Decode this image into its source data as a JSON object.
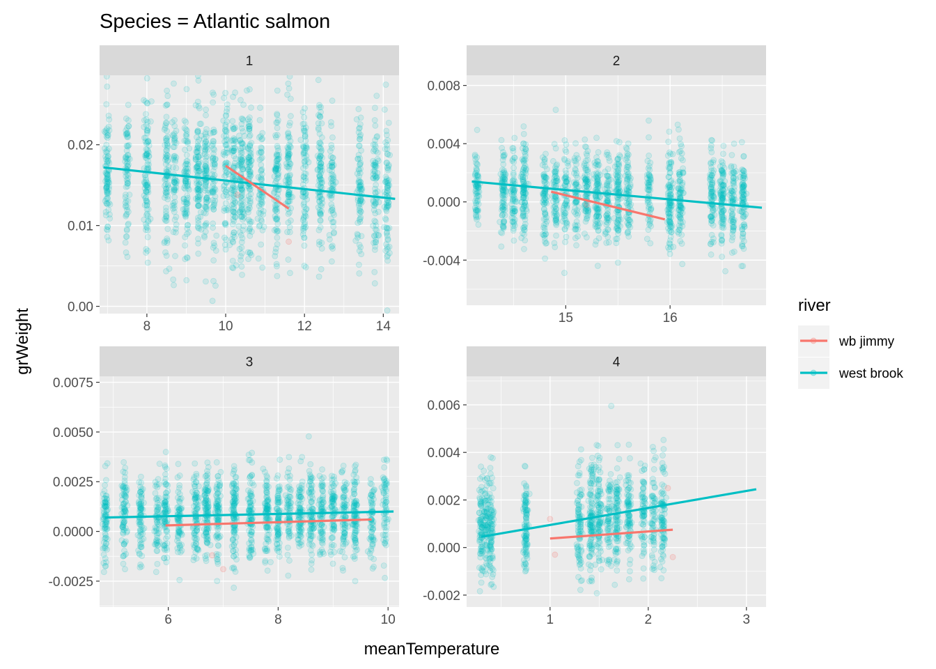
{
  "chart_data": {
    "type": "scatter",
    "title": "Species = Atlantic salmon",
    "xlabel": "meanTemperature",
    "ylabel": "grWeight",
    "legend": {
      "title": "river",
      "placement": "right",
      "entries": [
        {
          "name": "wb jimmy",
          "color": "#F8766D"
        },
        {
          "name": "west brook",
          "color": "#00BFC4"
        }
      ]
    },
    "facets": [
      {
        "label": "1",
        "xlim": [
          6.8,
          14.4
        ],
        "ylim": [
          -0.0009,
          0.0286
        ],
        "xticks": [
          8,
          10,
          12,
          14
        ],
        "xtick_labels": [
          "8",
          "10",
          "12",
          "14"
        ],
        "yticks": [
          0.0,
          0.01,
          0.02
        ],
        "ytick_labels": [
          "0.00",
          "0.01",
          "0.02"
        ],
        "x_groups": [
          7.0,
          7.5,
          8.0,
          8.5,
          8.7,
          9.0,
          9.3,
          9.5,
          9.7,
          10.0,
          10.2,
          10.4,
          10.6,
          10.9,
          11.3,
          11.6,
          12.0,
          12.4,
          12.7,
          13.4,
          13.8,
          14.1
        ],
        "y_center": 0.016,
        "y_spread": 0.0045,
        "series": [
          {
            "name": "west brook",
            "fit": {
              "x": [
                6.9,
                14.3
              ],
              "y": [
                0.0172,
                0.0133
              ]
            }
          },
          {
            "name": "wb jimmy",
            "fit": {
              "x": [
                10.0,
                11.6
              ],
              "y": [
                0.0174,
                0.0121
              ]
            },
            "points": [
              {
                "x": 11.6,
                "y": 0.008
              },
              {
                "x": 10.3,
                "y": 0.0138
              }
            ]
          }
        ]
      },
      {
        "label": "2",
        "xlim": [
          14.05,
          16.92
        ],
        "ylim": [
          -0.0071,
          0.0087
        ],
        "xticks": [
          15,
          16
        ],
        "xtick_labels": [
          "15",
          "16"
        ],
        "yticks": [
          -0.004,
          0.0,
          0.004,
          0.008
        ],
        "ytick_labels": [
          "-0.004",
          "0.000",
          "0.004",
          "0.008"
        ],
        "x_groups": [
          14.15,
          14.4,
          14.5,
          14.6,
          14.8,
          14.9,
          15.0,
          15.1,
          15.2,
          15.3,
          15.4,
          15.5,
          15.6,
          15.8,
          16.0,
          16.1,
          16.4,
          16.5,
          16.6,
          16.7
        ],
        "y_center": 0.0003,
        "y_spread": 0.0016,
        "series": [
          {
            "name": "west brook",
            "fit": {
              "x": [
                14.1,
                16.88
              ],
              "y": [
                0.0014,
                -0.0004
              ]
            }
          },
          {
            "name": "wb jimmy",
            "fit": {
              "x": [
                14.86,
                15.95
              ],
              "y": [
                0.0007,
                -0.0012
              ]
            },
            "points": [
              {
                "x": 15.2,
                "y": -0.0002
              }
            ]
          }
        ]
      },
      {
        "label": "3",
        "xlim": [
          4.75,
          10.2
        ],
        "ylim": [
          -0.0038,
          0.0078
        ],
        "xticks": [
          6,
          8,
          10
        ],
        "xtick_labels": [
          "6",
          "8",
          "10"
        ],
        "yticks": [
          -0.0025,
          0.0,
          0.0025,
          0.005,
          0.0075
        ],
        "ytick_labels": [
          "-0.0025",
          "0.0000",
          "0.0025",
          "0.0050",
          "0.0075"
        ],
        "x_groups": [
          4.85,
          5.2,
          5.5,
          5.8,
          5.95,
          6.2,
          6.5,
          6.7,
          6.9,
          7.2,
          7.5,
          7.8,
          8.0,
          8.2,
          8.4,
          8.6,
          8.8,
          9.0,
          9.2,
          9.4,
          9.7,
          9.95
        ],
        "y_center": 0.0008,
        "y_spread": 0.0011,
        "series": [
          {
            "name": "west brook",
            "fit": {
              "x": [
                4.85,
                10.1
              ],
              "y": [
                0.0007,
                0.001
              ]
            }
          },
          {
            "name": "wb jimmy",
            "fit": {
              "x": [
                5.95,
                9.7
              ],
              "y": [
                0.0003,
                0.0006
              ]
            },
            "points": [
              {
                "x": 7.0,
                "y": -0.0019
              },
              {
                "x": 6.8,
                "y": -0.0012
              }
            ]
          }
        ]
      },
      {
        "label": "4",
        "xlim": [
          0.15,
          3.2
        ],
        "ylim": [
          -0.0025,
          0.0072
        ],
        "xticks": [
          1,
          2,
          3
        ],
        "xtick_labels": [
          "1",
          "2",
          "3"
        ],
        "yticks": [
          -0.002,
          0.0,
          0.002,
          0.004,
          0.006
        ],
        "ytick_labels": [
          "-0.002",
          "0.000",
          "0.002",
          "0.004",
          "0.006"
        ],
        "x_groups": [
          0.3,
          0.35,
          0.4,
          0.75,
          1.3,
          1.42,
          1.5,
          1.6,
          1.68,
          1.8,
          1.95,
          2.05,
          2.15
        ],
        "y_center": 0.0011,
        "y_spread": 0.0011,
        "series": [
          {
            "name": "west brook",
            "fit": {
              "x": [
                0.3,
                3.1
              ],
              "y": [
                0.00045,
                0.00245
              ]
            }
          },
          {
            "name": "wb jimmy",
            "fit": {
              "x": [
                1.0,
                2.25
              ],
              "y": [
                0.00038,
                0.00075
              ]
            },
            "points": [
              {
                "x": 1.0,
                "y": 0.0012
              },
              {
                "x": 1.05,
                "y": -0.0003
              },
              {
                "x": 2.25,
                "y": -0.0004
              },
              {
                "x": 2.2,
                "y": 0.0025
              }
            ]
          }
        ]
      }
    ]
  }
}
